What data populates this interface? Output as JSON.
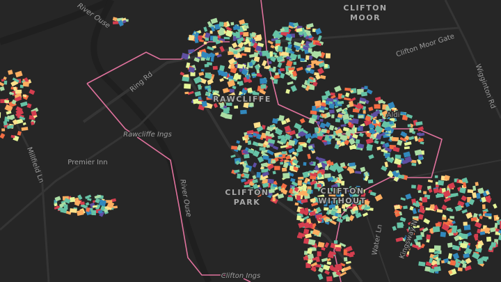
{
  "map": {
    "labels": [
      "CLIFTON",
      "MOOR",
      "Clifton Moor Gate",
      "Wigginton Rd",
      "River Ouse",
      "Ring Rd",
      "RAWCLIFFE",
      "Rawcliffe Ings",
      "Premier Inn",
      "Millfield Ln",
      "CLIFTON",
      "PARK",
      "River Ouse",
      "CLIFTON",
      "WITHOUT",
      "Clifton Ings",
      "Aldi",
      "Water Ln",
      "Kingsway N"
    ]
  }
}
